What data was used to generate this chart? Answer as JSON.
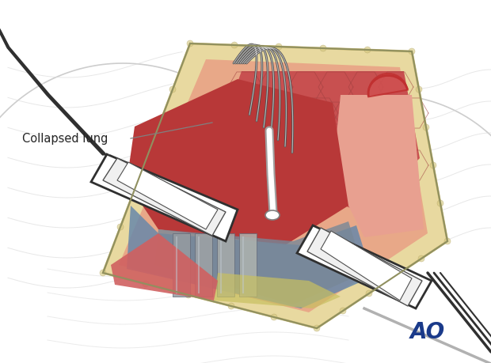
{
  "bg_color": "#ffffff",
  "label_text": "Collapsed lung",
  "ao_text": "AO",
  "ao_color": "#1a3a8a",
  "tissue_yellow": "#e8d9a0",
  "tissue_yellow_dark": "#c8b870",
  "tissue_red_light": "#e8a090",
  "tissue_red": "#c04040",
  "tissue_red_mid": "#b84040",
  "tissue_blue": "#6888aa",
  "tissue_gray_blue": "#8090a8",
  "tissue_gray": "#909098",
  "retractor_fill": "#ffffff",
  "retractor_edge": "#303030",
  "line_dark": "#404040",
  "line_gray": "#909090",
  "hex_line": "#b05555",
  "white_color": "#ffffff",
  "small_red_fill": "#d05050",
  "small_red_edge": "#c03030"
}
